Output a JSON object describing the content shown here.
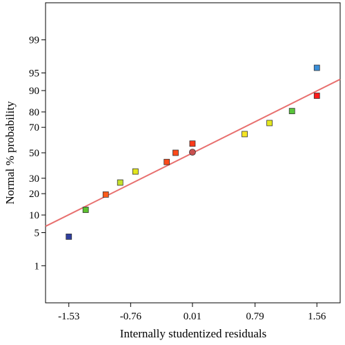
{
  "chart_data": {
    "type": "scatter",
    "title": "",
    "xlabel": "Internally studentized residuals",
    "ylabel": "Normal % probability",
    "y_scale": "normal-probability",
    "xlim": [
      -1.82,
      1.85
    ],
    "ylim": [
      0.1,
      99.9
    ],
    "x_ticks": [
      "-1.53",
      "-0.76",
      "0.01",
      "0.79",
      "1.56"
    ],
    "y_ticks": [
      "1",
      "5",
      "10",
      "20",
      "30",
      "50",
      "70",
      "80",
      "90",
      "95",
      "99"
    ],
    "grid": false,
    "legend": "none",
    "fit_line": {
      "color": "#e8706f",
      "x": [
        -1.82,
        1.85
      ],
      "y": [
        6.5,
        93.5
      ]
    },
    "points": [
      {
        "x": -1.53,
        "y": 4.2,
        "color": "#2f3f9f"
      },
      {
        "x": -1.32,
        "y": 12.0,
        "color": "#5cc12f"
      },
      {
        "x": -1.07,
        "y": 19.5,
        "color": "#ff5b1a"
      },
      {
        "x": -0.89,
        "y": 27.0,
        "color": "#c6e12b"
      },
      {
        "x": -0.7,
        "y": 35.0,
        "color": "#e3e61d"
      },
      {
        "x": -0.31,
        "y": 42.5,
        "color": "#ff4a1a"
      },
      {
        "x": -0.2,
        "y": 50.0,
        "color": "#ff4a1a"
      },
      {
        "x": 0.01,
        "y": 57.5,
        "color": "#ff3a1a"
      },
      {
        "x": 0.01,
        "y": 50.5,
        "color": "#c8504f",
        "marker": "circle"
      },
      {
        "x": 0.66,
        "y": 65.0,
        "color": "#f5e524"
      },
      {
        "x": 0.97,
        "y": 73.0,
        "color": "#e4e81f"
      },
      {
        "x": 1.25,
        "y": 80.5,
        "color": "#58c53a"
      },
      {
        "x": 1.56,
        "y": 88.0,
        "color": "#ff1a1a"
      },
      {
        "x": 1.56,
        "y": 96.0,
        "color": "#3a8fd9"
      }
    ]
  }
}
